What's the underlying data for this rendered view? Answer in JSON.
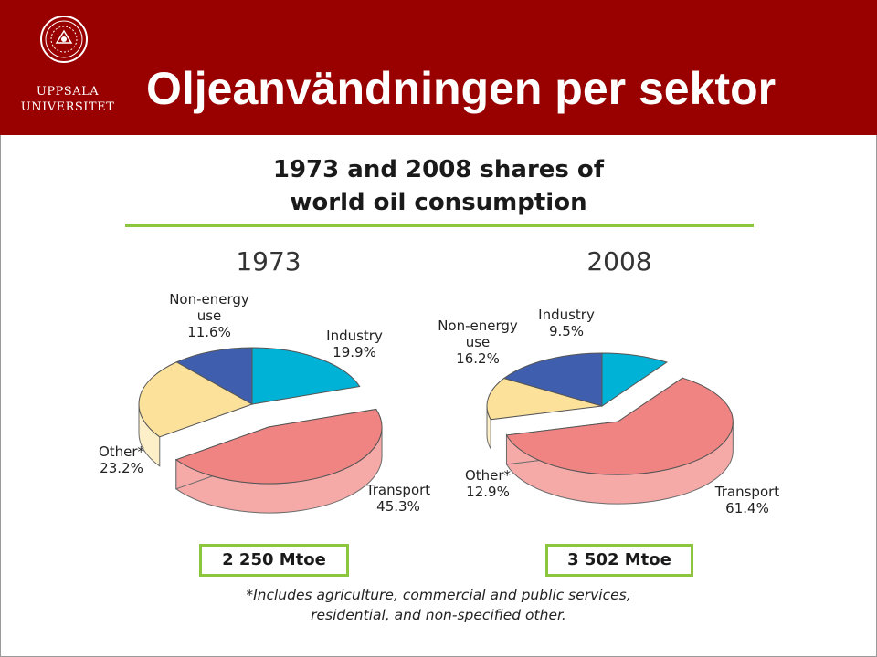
{
  "header": {
    "logo_lines": [
      "UPPSALA",
      "UNIVERSITET"
    ],
    "title": "Oljeanvändningen per sektor"
  },
  "chart_data": [
    {
      "type": "pie",
      "title": "1973 and 2008 shares of world oil consumption",
      "year": "1973",
      "total": "2 250 Mtoe",
      "slices": [
        {
          "name": "Industry",
          "value": 19.9,
          "label": "19.9%",
          "color": "#00b2d6",
          "side_color": "#9fdbea"
        },
        {
          "name": "Transport",
          "value": 45.3,
          "label": "45.3%",
          "color": "#f08482",
          "side_color": "#f6aaa8"
        },
        {
          "name": "Other*",
          "value": 23.2,
          "label": "23.2%",
          "color": "#fce19a",
          "side_color": "#fdf0c8"
        },
        {
          "name": "Non-energy use",
          "value": 11.6,
          "label": "11.6%",
          "color": "#3f5fae",
          "side_color": "#5f7cc0"
        }
      ]
    },
    {
      "type": "pie",
      "title": "1973 and 2008 shares of world oil consumption",
      "year": "2008",
      "total": "3 502 Mtoe",
      "slices": [
        {
          "name": "Industry",
          "value": 9.5,
          "label": "9.5%",
          "color": "#00b2d6",
          "side_color": "#9fdbea"
        },
        {
          "name": "Transport",
          "value": 61.4,
          "label": "61.4%",
          "color": "#f08482",
          "side_color": "#f6aaa8"
        },
        {
          "name": "Other*",
          "value": 12.9,
          "label": "12.9%",
          "color": "#fce19a",
          "side_color": "#fdf0c8"
        },
        {
          "name": "Non-energy use",
          "value": 16.2,
          "label": "16.2%",
          "color": "#3f5fae",
          "side_color": "#5f7cc0"
        }
      ]
    }
  ],
  "chart_title_lines": [
    "1973 and 2008 shares of",
    "world oil consumption"
  ],
  "footnote_lines": [
    "*Includes agriculture, commercial and public services,",
    "residential, and non-specified other."
  ]
}
